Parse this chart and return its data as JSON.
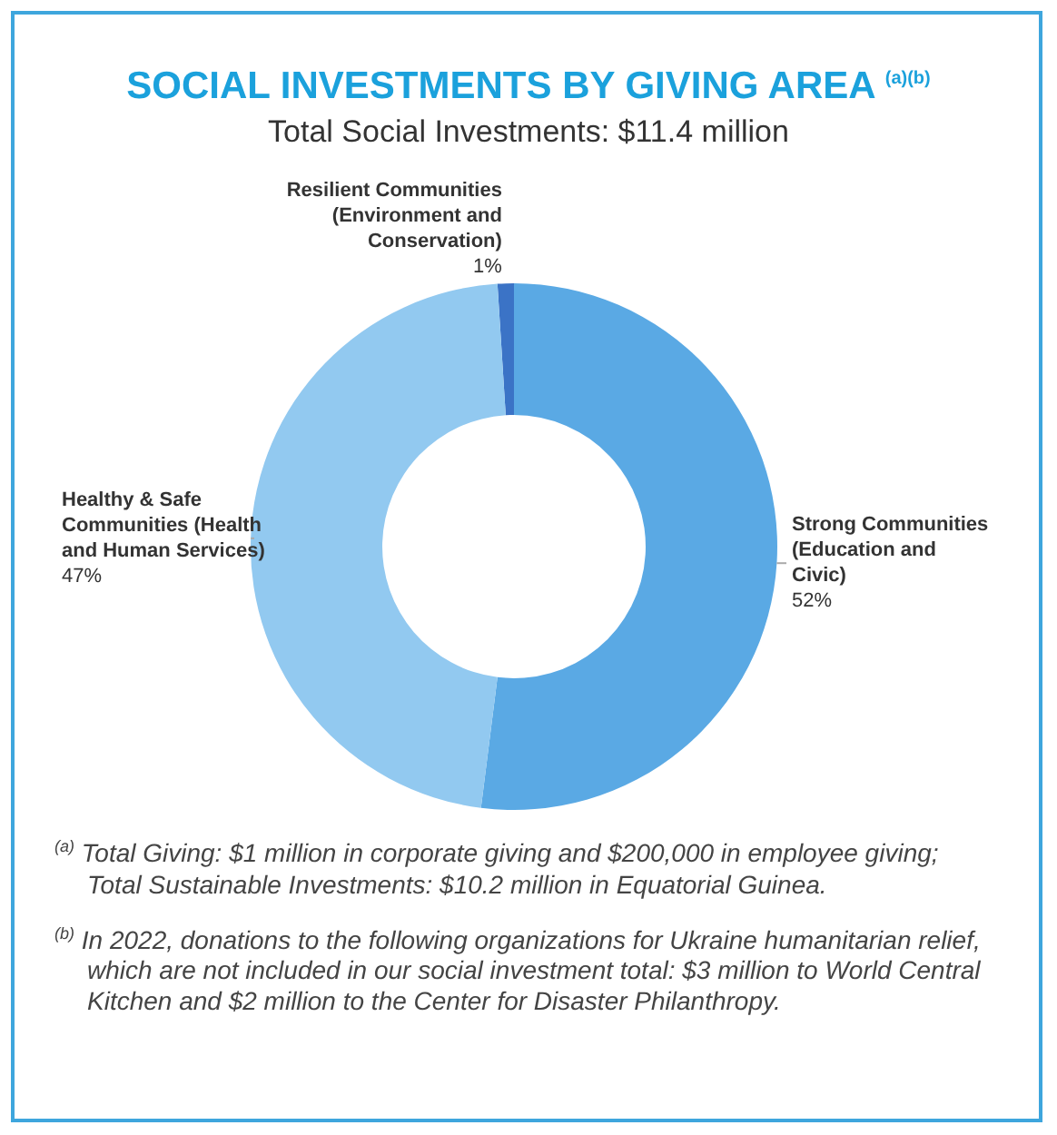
{
  "chart_data": {
    "type": "donut",
    "title": "SOCIAL INVESTMENTS BY GIVING AREA $^{(a)(b)}$",
    "subtitle": "Total Social Investments: $11.4 million",
    "categories": [
      "Resilient Communities (Environment and Conservation)",
      "Strong Communities (Education and Civic)",
      "Healthy & Safe Communities (Health and Human Services)"
    ],
    "values": [
      1,
      52,
      47
    ],
    "colors": [
      "#3b73c6",
      "#5aa9e4",
      "#92c9f0"
    ],
    "value_labels": [
      "1%",
      "52%",
      "47%"
    ],
    "legend": false,
    "annotations": [
      "$^{(a)}$ Total Giving: $1 million in corporate giving and $200,000 in employee giving; Total Sustainable Investments: $10.2 million in Equatorial Guinea.",
      "$^{(b)}$ In 2022, donations to the following organizations for Ukraine humanitarian relief, which are not included in our social investment total: $3 million to World Central Kitchen and $2 million to the Center for Disaster Philanthropy."
    ]
  }
}
